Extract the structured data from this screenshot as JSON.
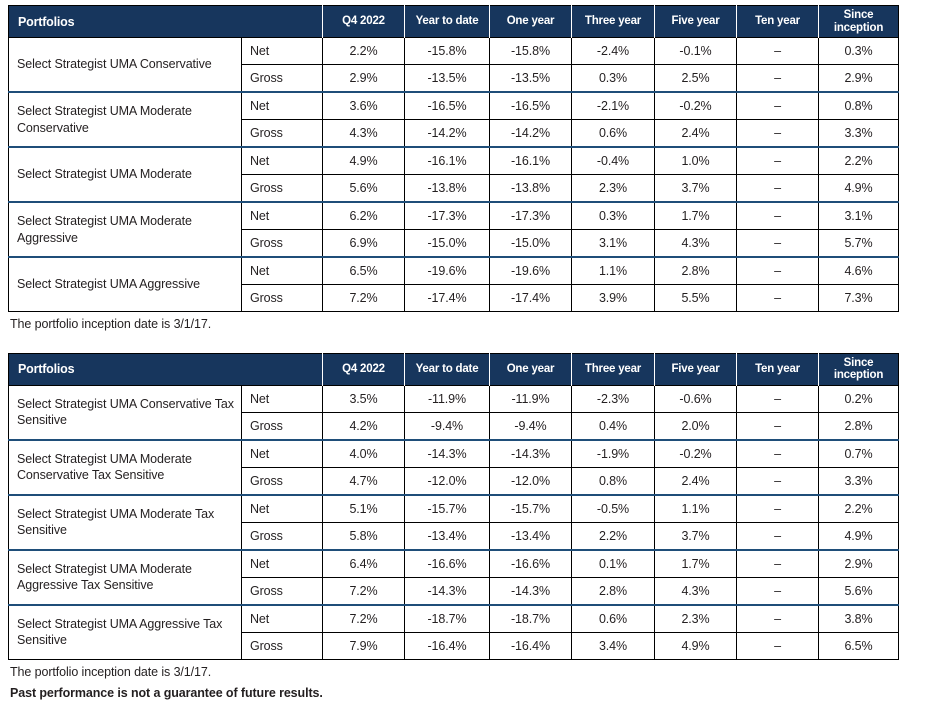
{
  "colors": {
    "header_bg": "#17365d",
    "header_text": "#ffffff",
    "body_text": "#231f20",
    "grid_line": "#000000",
    "group_divider": "#1f4e79"
  },
  "portfolios_header": "Portfolios",
  "columns": [
    "Q4 2022",
    "Year to date",
    "One year",
    "Three year",
    "Five year",
    "Ten year",
    "Since inception"
  ],
  "tables": [
    {
      "footnotes": [
        "The portfolio inception date is 3/1/17."
      ],
      "groups": [
        {
          "name": "Select Strategist UMA Conservative",
          "rows": [
            {
              "label": "Net",
              "values": [
                "2.2%",
                "-15.8%",
                "-15.8%",
                "-2.4%",
                "-0.1%",
                "–",
                "0.3%"
              ]
            },
            {
              "label": "Gross",
              "values": [
                "2.9%",
                "-13.5%",
                "-13.5%",
                "0.3%",
                "2.5%",
                "–",
                "2.9%"
              ]
            }
          ]
        },
        {
          "name": "Select Strategist UMA Moderate Conservative",
          "rows": [
            {
              "label": "Net",
              "values": [
                "3.6%",
                "-16.5%",
                "-16.5%",
                "-2.1%",
                "-0.2%",
                "–",
                "0.8%"
              ]
            },
            {
              "label": "Gross",
              "values": [
                "4.3%",
                "-14.2%",
                "-14.2%",
                "0.6%",
                "2.4%",
                "–",
                "3.3%"
              ]
            }
          ]
        },
        {
          "name": "Select Strategist UMA Moderate",
          "rows": [
            {
              "label": "Net",
              "values": [
                "4.9%",
                "-16.1%",
                "-16.1%",
                "-0.4%",
                "1.0%",
                "–",
                "2.2%"
              ]
            },
            {
              "label": "Gross",
              "values": [
                "5.6%",
                "-13.8%",
                "-13.8%",
                "2.3%",
                "3.7%",
                "–",
                "4.9%"
              ]
            }
          ]
        },
        {
          "name": "Select Strategist UMA Moderate Aggressive",
          "rows": [
            {
              "label": "Net",
              "values": [
                "6.2%",
                "-17.3%",
                "-17.3%",
                "0.3%",
                "1.7%",
                "–",
                "3.1%"
              ]
            },
            {
              "label": "Gross",
              "values": [
                "6.9%",
                "-15.0%",
                "-15.0%",
                "3.1%",
                "4.3%",
                "–",
                "5.7%"
              ]
            }
          ]
        },
        {
          "name": "Select Strategist UMA Aggressive",
          "rows": [
            {
              "label": "Net",
              "values": [
                "6.5%",
                "-19.6%",
                "-19.6%",
                "1.1%",
                "2.8%",
                "–",
                "4.6%"
              ]
            },
            {
              "label": "Gross",
              "values": [
                "7.2%",
                "-17.4%",
                "-17.4%",
                "3.9%",
                "5.5%",
                "–",
                "7.3%"
              ]
            }
          ]
        }
      ]
    },
    {
      "footnotes": [
        "The portfolio inception date is 3/1/17.",
        "Past performance is not a guarantee of future results."
      ],
      "groups": [
        {
          "name": "Select Strategist UMA Conservative Tax Sensitive",
          "rows": [
            {
              "label": "Net",
              "values": [
                "3.5%",
                "-11.9%",
                "-11.9%",
                "-2.3%",
                "-0.6%",
                "–",
                "0.2%"
              ]
            },
            {
              "label": "Gross",
              "values": [
                "4.2%",
                "-9.4%",
                "-9.4%",
                "0.4%",
                "2.0%",
                "–",
                "2.8%"
              ]
            }
          ]
        },
        {
          "name": "Select Strategist UMA Moderate Conservative Tax Sensitive",
          "rows": [
            {
              "label": "Net",
              "values": [
                "4.0%",
                "-14.3%",
                "-14.3%",
                "-1.9%",
                "-0.2%",
                "–",
                "0.7%"
              ]
            },
            {
              "label": "Gross",
              "values": [
                "4.7%",
                "-12.0%",
                "-12.0%",
                "0.8%",
                "2.4%",
                "–",
                "3.3%"
              ]
            }
          ]
        },
        {
          "name": "Select Strategist UMA Moderate Tax Sensitive",
          "rows": [
            {
              "label": "Net",
              "values": [
                "5.1%",
                "-15.7%",
                "-15.7%",
                "-0.5%",
                "1.1%",
                "–",
                "2.2%"
              ]
            },
            {
              "label": "Gross",
              "values": [
                "5.8%",
                "-13.4%",
                "-13.4%",
                "2.2%",
                "3.7%",
                "–",
                "4.9%"
              ]
            }
          ]
        },
        {
          "name": "Select Strategist UMA Moderate Aggressive Tax Sensitive",
          "rows": [
            {
              "label": "Net",
              "values": [
                "6.4%",
                "-16.6%",
                "-16.6%",
                "0.1%",
                "1.7%",
                "–",
                "2.9%"
              ]
            },
            {
              "label": "Gross",
              "values": [
                "7.2%",
                "-14.3%",
                "-14.3%",
                "2.8%",
                "4.3%",
                "–",
                "5.6%"
              ]
            }
          ]
        },
        {
          "name": "Select Strategist UMA Aggressive Tax Sensitive",
          "rows": [
            {
              "label": "Net",
              "values": [
                "7.2%",
                "-18.7%",
                "-18.7%",
                "0.6%",
                "2.3%",
                "–",
                "3.8%"
              ]
            },
            {
              "label": "Gross",
              "values": [
                "7.9%",
                "-16.4%",
                "-16.4%",
                "3.4%",
                "4.9%",
                "–",
                "6.5%"
              ]
            }
          ]
        }
      ]
    }
  ]
}
